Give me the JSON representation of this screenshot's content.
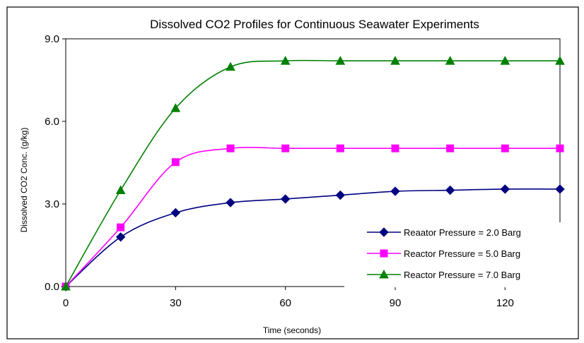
{
  "chart_data": {
    "type": "line",
    "title": "Dissolved CO2 Profiles for Continuous Seawater Experiments",
    "xlabel": "Time (seconds)",
    "ylabel": "Dissolved CO2 Conc. (g/kg)",
    "xlim": [
      0,
      135
    ],
    "ylim": [
      0,
      9
    ],
    "x_ticks": [
      "0",
      "30",
      "60",
      "90",
      "120"
    ],
    "y_ticks": [
      "0.0",
      "3.0",
      "6.0",
      "9.0"
    ],
    "grid": false,
    "legend_position": "bottom-right",
    "x": [
      0,
      15,
      30,
      45,
      60,
      75,
      90,
      105,
      120,
      135
    ],
    "series": [
      {
        "name": "Reaator Pressure = 2.0 Barg",
        "marker": "diamond",
        "color": "#000080",
        "values": [
          0,
          1.8,
          2.68,
          3.05,
          3.18,
          3.32,
          3.46,
          3.5,
          3.54,
          3.54
        ]
      },
      {
        "name": "Reactor Pressure = 5.0 Barg",
        "marker": "square",
        "color": "#FF00FF",
        "values": [
          0,
          2.15,
          4.52,
          5.02,
          5.02,
          5.02,
          5.02,
          5.02,
          5.02,
          5.02
        ]
      },
      {
        "name": "Reactor Pressure = 7.0 Barg",
        "marker": "triangle",
        "color": "#008000",
        "values": [
          0,
          3.5,
          6.48,
          7.98,
          8.2,
          8.2,
          8.2,
          8.2,
          8.2,
          8.2
        ]
      }
    ]
  }
}
